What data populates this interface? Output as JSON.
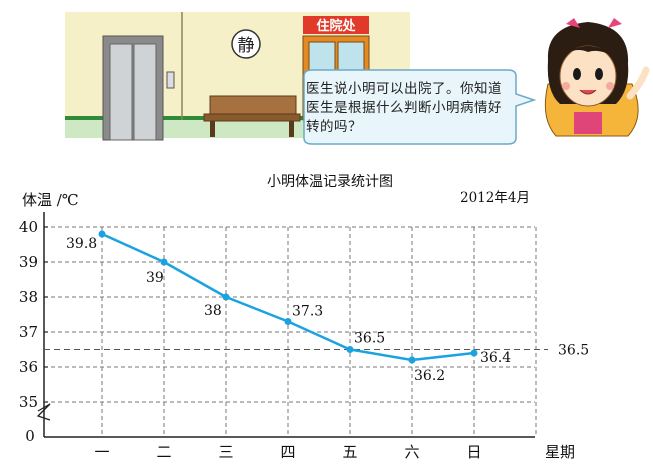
{
  "illustration": {
    "sign_quiet": "静",
    "sign_ward": "住院处",
    "speech_bubble": "医生说小明可以出院了。你知道医生是根据什么判断小明病情好转的吗？"
  },
  "chart_data": {
    "type": "line",
    "title": "小明体温记录统计图",
    "date": "2012年4月",
    "ylabel": "体温 /℃",
    "xlabel": "星期",
    "categories": [
      "一",
      "二",
      "三",
      "四",
      "五",
      "六",
      "日"
    ],
    "values": [
      39.8,
      39,
      38,
      37.3,
      36.5,
      36.2,
      36.4
    ],
    "value_labels": [
      "39.8",
      "39",
      "38",
      "37.3",
      "36.5",
      "36.2",
      "36.4"
    ],
    "y_ticks": [
      "40",
      "39",
      "38",
      "37",
      "36",
      "35"
    ],
    "y_zero": "0",
    "ylim": [
      35,
      40
    ],
    "reference_line": {
      "value": 36.5,
      "label": "36.5"
    },
    "colors": {
      "line": "#1aa3e0",
      "grid": "#777777",
      "axis": "#222222"
    }
  }
}
